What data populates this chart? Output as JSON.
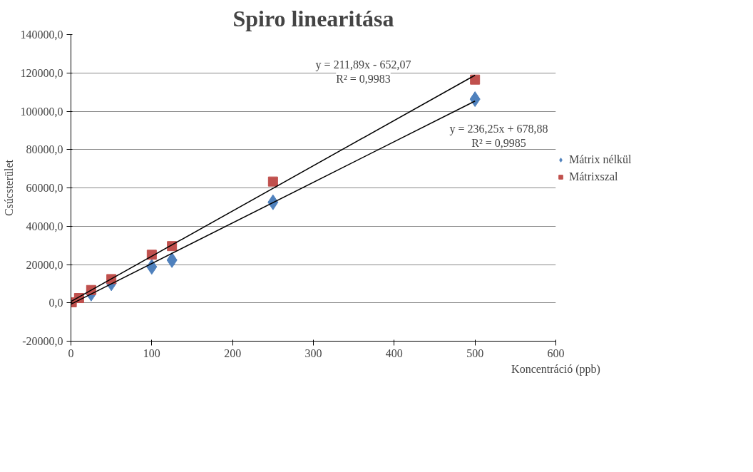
{
  "chart_data": {
    "type": "scatter",
    "title": "Spiro linearitása",
    "xlabel": "Koncentráció (ppb)",
    "ylabel": "Csúcsterület",
    "xlim": [
      0,
      600
    ],
    "xticks": [
      0,
      100,
      200,
      300,
      400,
      500,
      600
    ],
    "ylim": [
      -20000,
      140000
    ],
    "yticks": [
      {
        "value": -20000,
        "label": "-20000,0"
      },
      {
        "value": 0,
        "label": "0,0"
      },
      {
        "value": 20000,
        "label": "20000,0"
      },
      {
        "value": 40000,
        "label": "40000,0"
      },
      {
        "value": 60000,
        "label": "60000,0"
      },
      {
        "value": 80000,
        "label": "80000,0"
      },
      {
        "value": 100000,
        "label": "100000,0"
      },
      {
        "value": 120000,
        "label": "120000,0"
      },
      {
        "value": 140000,
        "label": "140000,0"
      }
    ],
    "grid": "y",
    "legend": "right",
    "series": [
      {
        "name": "Mátrix nélkül",
        "color": "#4f81bd",
        "marker": "diamond",
        "x": [
          25,
          50,
          100,
          125,
          250,
          500
        ],
        "values": [
          4800,
          10200,
          18800,
          22300,
          52500,
          106300
        ]
      },
      {
        "name": "Mátrixszal",
        "color": "#c0504d",
        "marker": "square",
        "x": [
          1,
          10,
          25,
          50,
          100,
          125,
          250,
          500
        ],
        "values": [
          300,
          2500,
          6700,
          12400,
          25100,
          29600,
          63300,
          116500
        ]
      },
      {
        "type": "line",
        "color": "#000000",
        "x": [
          0,
          500
        ],
        "values": [
          -700,
          105300
        ]
      },
      {
        "type": "line",
        "color": "#000000",
        "x": [
          0,
          500
        ],
        "values": [
          700,
          118800
        ]
      }
    ],
    "annotations": [
      "y = 211,89x - 652,07\nR² = 0,9983",
      "y = 236,25x + 678,88\nR² = 0,9985"
    ]
  }
}
